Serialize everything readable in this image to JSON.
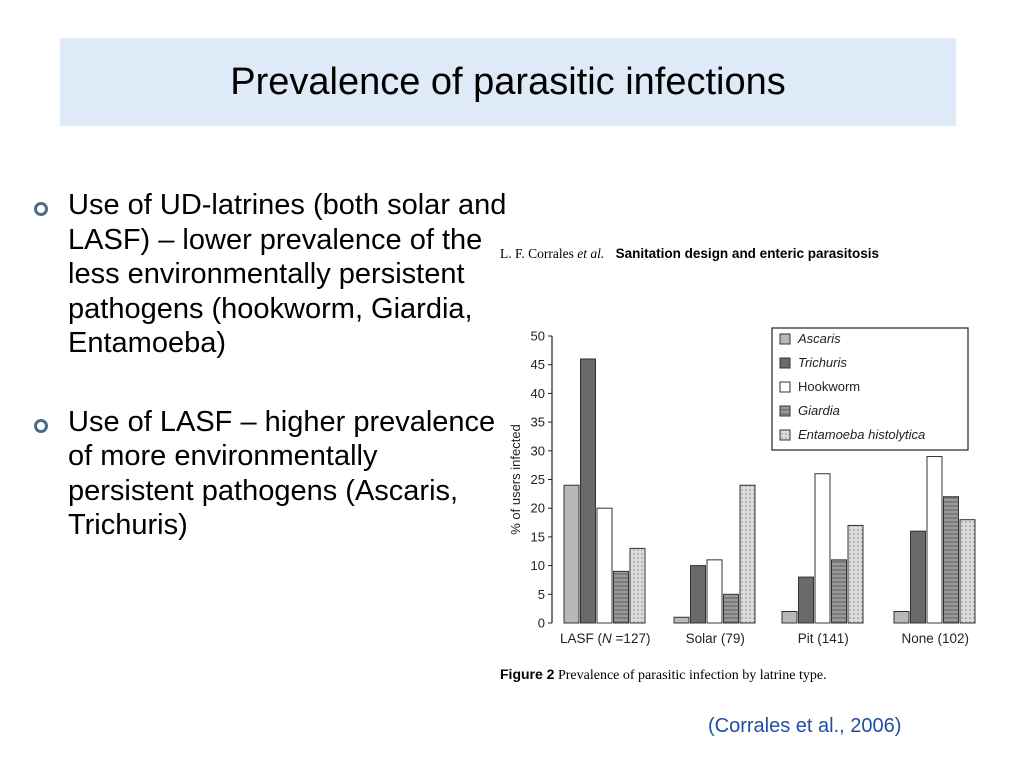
{
  "slide": {
    "title": "Prevalence of parasitic infections",
    "bullets": [
      "Use of UD-latrines (both solar and LASF) – lower prevalence of the less environmentally persistent pathogens (hookworm, Giardia, Entamoeba)",
      "Use of LASF – higher prevalence of more environmentally persistent pathogens (Ascaris, Trichuris)"
    ],
    "citation": "(Corrales et al., 2006)"
  },
  "figure": {
    "header_author": "L. F. Corrales",
    "header_etal": "et al.",
    "header_title": "Sanitation design and enteric parasitosis",
    "caption_label": "Figure 2",
    "caption_text": "Prevalence of parasitic infection by latrine type."
  },
  "chart_data": {
    "type": "bar",
    "ylabel": "% of users infected",
    "ylim": [
      0,
      50
    ],
    "yticks": [
      0,
      5,
      10,
      15,
      20,
      25,
      30,
      35,
      40,
      45,
      50
    ],
    "legend_position": "top-right",
    "categories": [
      {
        "prefix": "LASF (",
        "italic": "N",
        "suffix": " =127)"
      },
      {
        "prefix": "Solar (79)",
        "italic": "",
        "suffix": ""
      },
      {
        "prefix": "Pit (141)",
        "italic": "",
        "suffix": ""
      },
      {
        "prefix": "None (102)",
        "italic": "",
        "suffix": ""
      }
    ],
    "series": [
      {
        "name": "Ascaris",
        "italic": true,
        "color": "#b8b8b8",
        "values": [
          24,
          1,
          2,
          2
        ]
      },
      {
        "name": "Trichuris",
        "italic": true,
        "color": "#6a6a6a",
        "values": [
          46,
          10,
          8,
          16
        ]
      },
      {
        "name": "Hookworm",
        "italic": false,
        "color": "#ffffff",
        "values": [
          20,
          11,
          26,
          29
        ]
      },
      {
        "name": "Giardia",
        "italic": true,
        "color": "#8c8c8c",
        "values": [
          9,
          5,
          11,
          22
        ]
      },
      {
        "name": "Entamoeba histolytica",
        "italic": true,
        "color": "#d6d6d6",
        "values": [
          13,
          24,
          17,
          18
        ]
      }
    ]
  }
}
